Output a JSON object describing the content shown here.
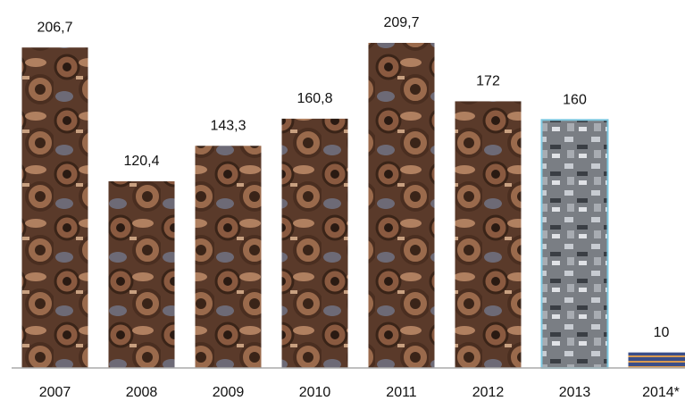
{
  "chart_data": {
    "type": "bar",
    "categories": [
      "2007",
      "2008",
      "2009",
      "2010",
      "2011",
      "2012",
      "2013",
      "2014*"
    ],
    "values": [
      206.7,
      120.4,
      143.3,
      160.8,
      209.7,
      172,
      160,
      10
    ],
    "value_labels": [
      "206,7",
      "120,4",
      "143,3",
      "160,8",
      "209,7",
      "172",
      "160",
      "10"
    ]
  }
}
